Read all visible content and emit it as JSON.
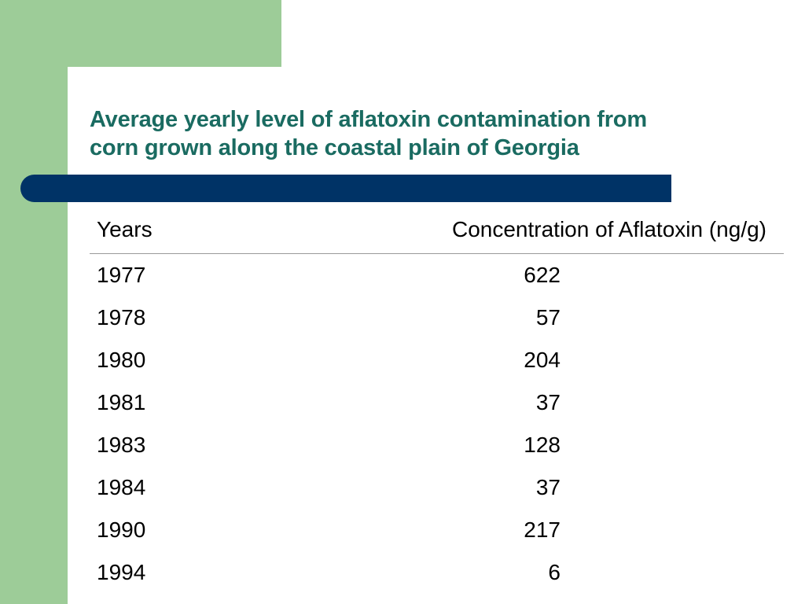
{
  "colors": {
    "green": "#9dcc98",
    "navy": "#003366",
    "title": "#1a6b61"
  },
  "slide": {
    "title_line1": "Average yearly level of aflatoxin contamination from",
    "title_line2": "corn grown along the coastal plain of Georgia"
  },
  "table": {
    "headers": {
      "years": "Years",
      "concentration": "Concentration of Aflatoxin (ng/g)"
    },
    "rows": [
      {
        "year": "1977",
        "value": "622"
      },
      {
        "year": "1978",
        "value": "57"
      },
      {
        "year": "1980",
        "value": "204"
      },
      {
        "year": "1981",
        "value": "37"
      },
      {
        "year": "1983",
        "value": "128"
      },
      {
        "year": "1984",
        "value": "37"
      },
      {
        "year": "1990",
        "value": "217"
      },
      {
        "year": "1994",
        "value": "6"
      }
    ]
  }
}
